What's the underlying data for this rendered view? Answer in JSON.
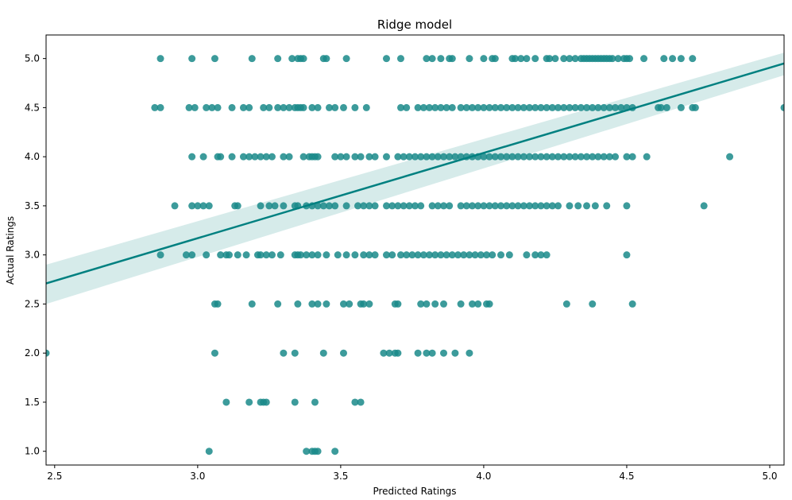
{
  "chart_data": {
    "type": "scatter",
    "title": "Ridge model",
    "xlabel": "Predicted Ratings",
    "ylabel": "Actual Ratings",
    "xlim": [
      2.47,
      5.05
    ],
    "ylim": [
      0.86,
      5.24
    ],
    "xticks": [
      "2.5",
      "3.0",
      "3.5",
      "4.0",
      "4.5",
      "5.0"
    ],
    "yticks": [
      "1.0",
      "1.5",
      "2.0",
      "2.5",
      "3.0",
      "3.5",
      "4.0",
      "4.5",
      "5.0"
    ],
    "grid": false,
    "point_color": "#1a8a8a",
    "line_color": "#008080",
    "band_color": "#cfe8e6",
    "regression": {
      "x": [
        2.47,
        5.05
      ],
      "y": [
        2.71,
        4.95
      ],
      "ci_lower": [
        2.5,
        4.83
      ],
      "ci_upper": [
        2.9,
        5.06
      ]
    },
    "rows": [
      {
        "y": 5.0,
        "x": [
          2.87,
          2.98,
          3.06,
          3.19,
          3.28,
          3.33,
          3.35,
          3.36,
          3.37,
          3.44,
          3.45,
          3.52,
          3.66,
          3.71,
          3.8,
          3.82,
          3.85,
          3.88,
          3.89,
          3.95,
          4.0,
          4.03,
          4.04,
          4.1,
          4.11,
          4.13,
          4.15,
          4.18,
          4.22,
          4.23,
          4.25,
          4.28,
          4.3,
          4.32,
          4.34,
          4.35,
          4.36,
          4.37,
          4.38,
          4.39,
          4.4,
          4.41,
          4.42,
          4.43,
          4.44,
          4.45,
          4.47,
          4.49,
          4.5,
          4.51,
          4.56,
          4.63,
          4.66,
          4.69,
          4.73
        ]
      },
      {
        "y": 4.5,
        "x": [
          2.85,
          2.87,
          2.97,
          2.99,
          3.03,
          3.05,
          3.07,
          3.12,
          3.16,
          3.18,
          3.23,
          3.25,
          3.28,
          3.3,
          3.32,
          3.34,
          3.35,
          3.36,
          3.37,
          3.4,
          3.42,
          3.46,
          3.48,
          3.51,
          3.55,
          3.59,
          3.71,
          3.73,
          3.77,
          3.79,
          3.81,
          3.83,
          3.85,
          3.87,
          3.89,
          3.92,
          3.94,
          3.96,
          3.98,
          4.0,
          4.02,
          4.04,
          4.06,
          4.08,
          4.1,
          4.12,
          4.14,
          4.16,
          4.18,
          4.2,
          4.22,
          4.24,
          4.26,
          4.28,
          4.3,
          4.32,
          4.34,
          4.36,
          4.38,
          4.4,
          4.42,
          4.44,
          4.46,
          4.48,
          4.5,
          4.52,
          4.61,
          4.62,
          4.64,
          4.69,
          4.73,
          4.74,
          5.05
        ]
      },
      {
        "y": 4.0,
        "x": [
          2.98,
          3.02,
          3.07,
          3.08,
          3.12,
          3.16,
          3.18,
          3.2,
          3.22,
          3.24,
          3.26,
          3.3,
          3.32,
          3.37,
          3.39,
          3.4,
          3.41,
          3.42,
          3.48,
          3.5,
          3.52,
          3.55,
          3.57,
          3.6,
          3.62,
          3.66,
          3.7,
          3.72,
          3.74,
          3.76,
          3.78,
          3.8,
          3.82,
          3.84,
          3.86,
          3.88,
          3.9,
          3.92,
          3.94,
          3.96,
          3.98,
          4.0,
          4.02,
          4.04,
          4.06,
          4.08,
          4.1,
          4.12,
          4.14,
          4.16,
          4.18,
          4.2,
          4.22,
          4.24,
          4.26,
          4.28,
          4.3,
          4.32,
          4.34,
          4.36,
          4.38,
          4.4,
          4.42,
          4.44,
          4.46,
          4.5,
          4.52,
          4.57,
          4.86
        ]
      },
      {
        "y": 3.5,
        "x": [
          2.92,
          2.98,
          3.0,
          3.02,
          3.04,
          3.13,
          3.14,
          3.22,
          3.25,
          3.27,
          3.3,
          3.34,
          3.35,
          3.38,
          3.4,
          3.42,
          3.44,
          3.46,
          3.48,
          3.52,
          3.56,
          3.58,
          3.6,
          3.62,
          3.66,
          3.68,
          3.7,
          3.72,
          3.74,
          3.76,
          3.78,
          3.82,
          3.84,
          3.86,
          3.88,
          3.92,
          3.94,
          3.96,
          3.98,
          4.0,
          4.02,
          4.04,
          4.06,
          4.08,
          4.1,
          4.12,
          4.14,
          4.16,
          4.18,
          4.2,
          4.22,
          4.24,
          4.26,
          4.3,
          4.33,
          4.36,
          4.39,
          4.43,
          4.5,
          4.77
        ]
      },
      {
        "y": 3.0,
        "x": [
          2.87,
          2.96,
          2.98,
          3.03,
          3.08,
          3.1,
          3.11,
          3.14,
          3.17,
          3.21,
          3.22,
          3.24,
          3.26,
          3.29,
          3.34,
          3.35,
          3.36,
          3.38,
          3.4,
          3.42,
          3.45,
          3.49,
          3.52,
          3.55,
          3.58,
          3.6,
          3.62,
          3.66,
          3.68,
          3.71,
          3.73,
          3.75,
          3.77,
          3.79,
          3.81,
          3.83,
          3.85,
          3.87,
          3.89,
          3.91,
          3.93,
          3.95,
          3.97,
          3.99,
          4.01,
          4.03,
          4.06,
          4.09,
          4.15,
          4.18,
          4.2,
          4.22,
          4.5
        ]
      },
      {
        "y": 2.5,
        "x": [
          3.06,
          3.07,
          3.19,
          3.28,
          3.35,
          3.4,
          3.42,
          3.45,
          3.51,
          3.53,
          3.57,
          3.58,
          3.6,
          3.69,
          3.7,
          3.78,
          3.8,
          3.83,
          3.86,
          3.92,
          3.96,
          3.98,
          4.01,
          4.02,
          4.29,
          4.38,
          4.52
        ]
      },
      {
        "y": 2.0,
        "x": [
          2.47,
          3.06,
          3.3,
          3.34,
          3.44,
          3.51,
          3.65,
          3.67,
          3.69,
          3.7,
          3.77,
          3.8,
          3.82,
          3.86,
          3.9,
          3.95
        ]
      },
      {
        "y": 1.5,
        "x": [
          3.1,
          3.18,
          3.22,
          3.23,
          3.24,
          3.34,
          3.41,
          3.55,
          3.57
        ]
      },
      {
        "y": 1.0,
        "x": [
          3.04,
          3.38,
          3.4,
          3.41,
          3.42,
          3.48
        ]
      }
    ]
  }
}
